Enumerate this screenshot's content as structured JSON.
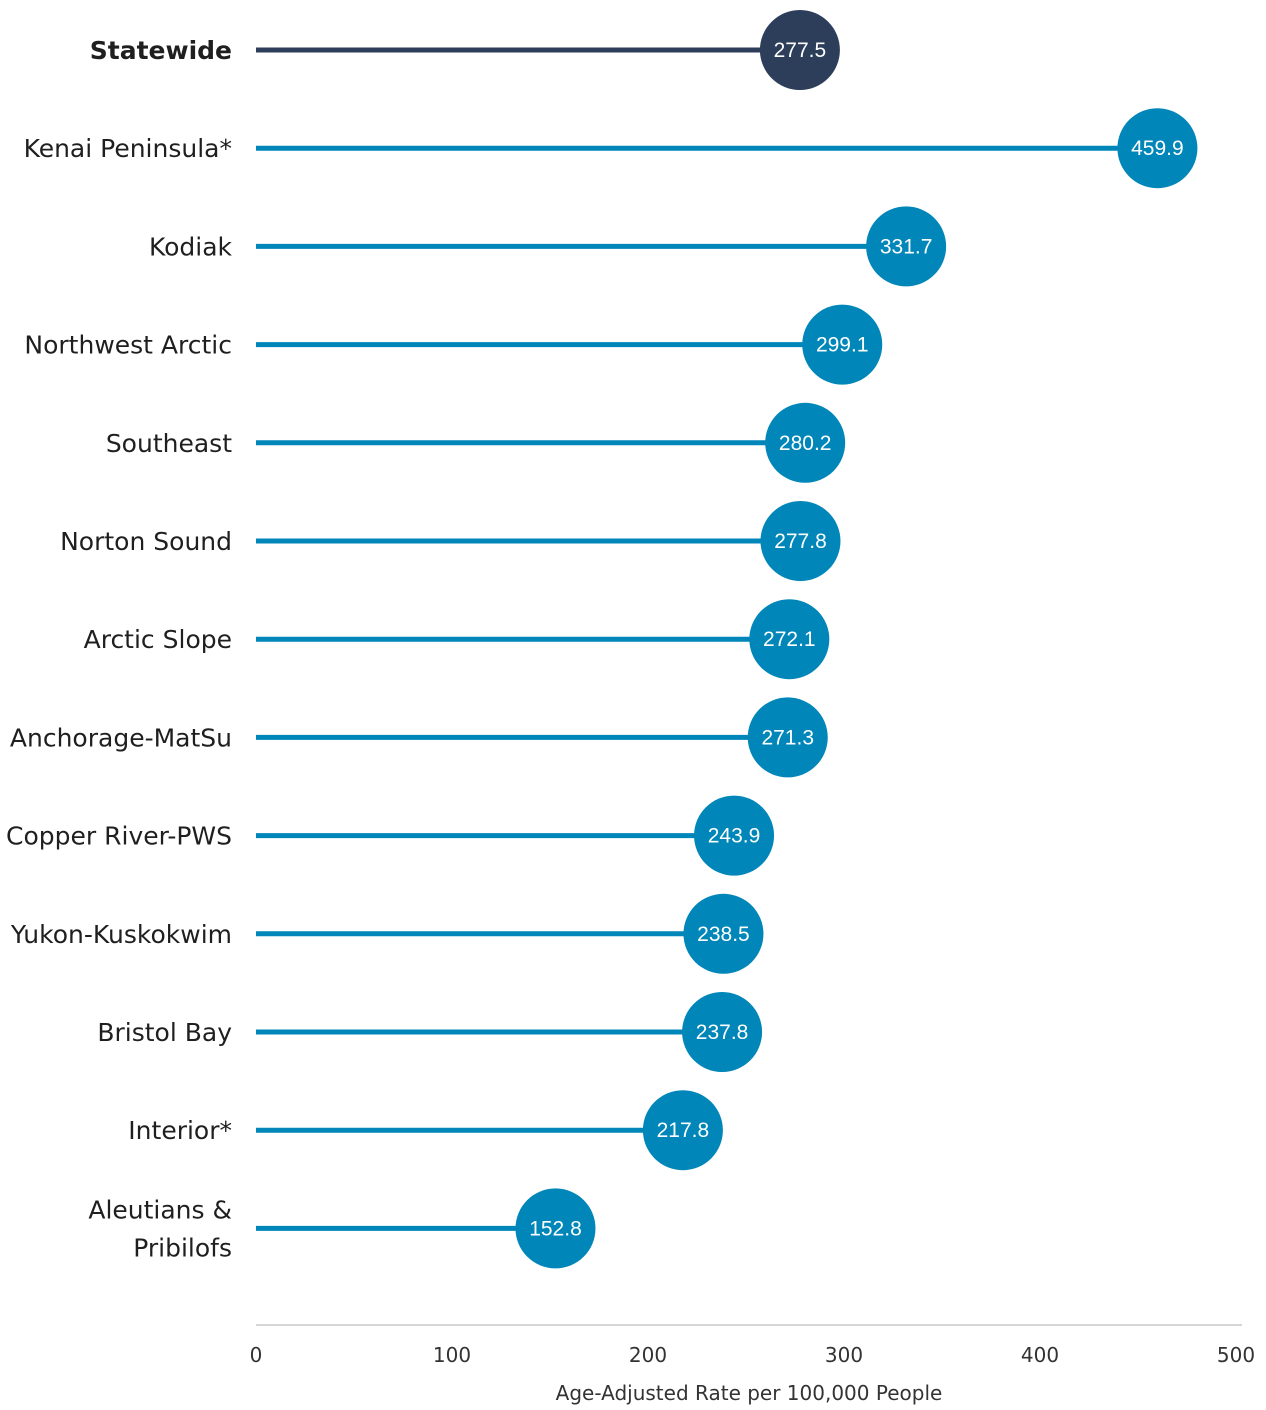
{
  "chart_data": {
    "type": "lollipop",
    "orientation": "horizontal",
    "categories": [
      "Statewide",
      "Kenai Peninsula*",
      "Kodiak",
      "Northwest Arctic",
      "Southeast",
      "Norton Sound",
      "Arctic Slope",
      "Anchorage-MatSu",
      "Copper River-PWS",
      "Yukon-Kuskokwim",
      "Bristol Bay",
      "Interior*",
      "Aleutians & Pribilofs"
    ],
    "values": [
      277.5,
      459.9,
      331.7,
      299.1,
      280.2,
      277.8,
      272.1,
      271.3,
      243.9,
      238.5,
      237.8,
      217.8,
      152.8
    ],
    "value_labels": [
      "277.5",
      "459.9",
      "331.7",
      "299.1",
      "280.2",
      "277.8",
      "272.1",
      "271.3",
      "243.9",
      "238.5",
      "237.8",
      "217.8",
      "152.8"
    ],
    "highlight_category": "Statewide",
    "xlabel": "Age-Adjusted Rate per 100,000 People",
    "xlim": [
      0,
      500
    ],
    "xticks": [
      0,
      100,
      200,
      300,
      400,
      500
    ],
    "xtick_labels": [
      "0",
      "100",
      "200",
      "300",
      "400",
      "500"
    ],
    "grid": false,
    "colors": {
      "highlight": "#2c3e5a",
      "series": "#0086b8",
      "axis": "#d6d6d6"
    }
  }
}
